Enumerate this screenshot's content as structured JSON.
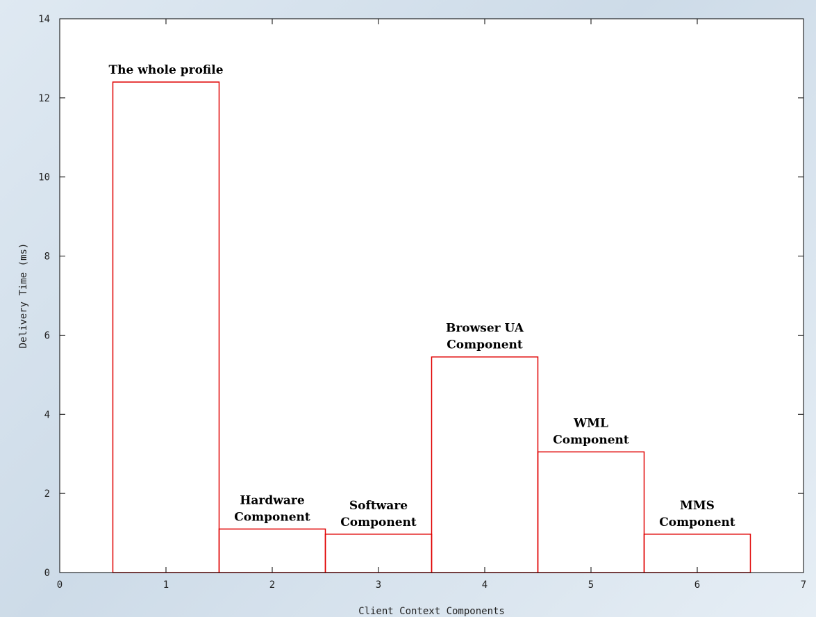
{
  "chart_data": {
    "type": "bar",
    "x": [
      1,
      2,
      3,
      4,
      5,
      6
    ],
    "values": [
      12.4,
      1.1,
      0.97,
      5.45,
      3.05,
      0.97
    ],
    "bar_labels": [
      [
        "The whole profile"
      ],
      [
        "Hardware",
        "Component"
      ],
      [
        "Software",
        "Component"
      ],
      [
        "Browser UA",
        "Component"
      ],
      [
        "WML",
        "Component"
      ],
      [
        "MMS",
        "Component"
      ]
    ],
    "xlabel": "Client Context Components",
    "ylabel": "Delivery Time (ms)",
    "xlim": [
      0,
      7
    ],
    "ylim": [
      0,
      14
    ],
    "xticks": [
      0,
      1,
      2,
      3,
      4,
      5,
      6,
      7
    ],
    "yticks": [
      0,
      2,
      4,
      6,
      8,
      10,
      12,
      14
    ],
    "bar_width": 1,
    "grid": false,
    "bar_color": "#e00000",
    "plot_background": "#ffffff"
  }
}
